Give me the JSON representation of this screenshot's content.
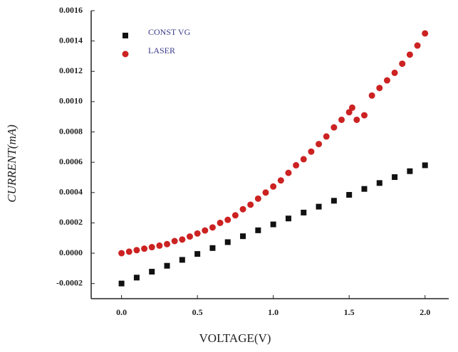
{
  "chart_data": {
    "type": "scatter",
    "x_label": "VOLTAGE(V)",
    "y_label": "CURRENT(mA)",
    "xlim": [
      -0.2,
      2.1
    ],
    "ylim": [
      -0.0003,
      0.0016
    ],
    "xticks": [
      {
        "value": 0,
        "label": "0.0"
      },
      {
        "value": 0.5,
        "label": "0.5"
      },
      {
        "value": 1,
        "label": "1.0"
      },
      {
        "value": 1.5,
        "label": "1.5"
      },
      {
        "value": 2,
        "label": "2.0"
      }
    ],
    "yticks": [
      {
        "value": -0.0002,
        "label": "-0.0002"
      },
      {
        "value": 0,
        "label": "0.0000"
      },
      {
        "value": 0.0002,
        "label": "0.0002"
      },
      {
        "value": 0.0004,
        "label": "0.0004"
      },
      {
        "value": 0.0006,
        "label": "0.0006"
      },
      {
        "value": 0.0008,
        "label": "0.0008"
      },
      {
        "value": 0.001,
        "label": "0.0010"
      },
      {
        "value": 0.0012,
        "label": "0.0012"
      },
      {
        "value": 0.0014,
        "label": "0.0014"
      },
      {
        "value": 0.0016,
        "label": "0.0016"
      }
    ],
    "grid": false,
    "legend": "top-left",
    "series": [
      {
        "name": "CONST VG",
        "color": "#111111",
        "marker": "square",
        "x": [
          0,
          0.1,
          0.2,
          0.3,
          0.4,
          0.5,
          0.6,
          0.7,
          0.8,
          0.9,
          1.0,
          1.1,
          1.2,
          1.3,
          1.4,
          1.5,
          1.6,
          1.7,
          1.8,
          1.9,
          2.0
        ],
        "values": [
          -0.0002,
          -0.000161,
          -0.000122,
          -8.3e-05,
          -4.4e-05,
          -5e-06,
          3.4e-05,
          7.3e-05,
          0.000112,
          0.000151,
          0.00019,
          0.000229,
          0.000268,
          0.000307,
          0.000346,
          0.000385,
          0.000424,
          0.000463,
          0.000502,
          0.000541,
          0.00058
        ]
      },
      {
        "name": "LASER",
        "color": "#cc2222",
        "marker": "circle",
        "x": [
          0,
          0.05,
          0.1,
          0.15,
          0.2,
          0.25,
          0.3,
          0.35,
          0.4,
          0.45,
          0.5,
          0.55,
          0.6,
          0.65,
          0.7,
          0.75,
          0.8,
          0.85,
          0.9,
          0.95,
          1.0,
          1.05,
          1.1,
          1.15,
          1.2,
          1.25,
          1.3,
          1.35,
          1.4,
          1.45,
          1.5,
          1.52,
          1.55,
          1.6,
          1.65,
          1.7,
          1.75,
          1.8,
          1.85,
          1.9,
          1.95,
          2.0
        ],
        "values": [
          0,
          1e-05,
          2e-05,
          3e-05,
          4e-05,
          5e-05,
          6e-05,
          8e-05,
          9e-05,
          0.00011,
          0.00013,
          0.00015,
          0.00017,
          0.0002,
          0.00022,
          0.00025,
          0.00029,
          0.00032,
          0.00036,
          0.0004,
          0.00044,
          0.00048,
          0.00053,
          0.00058,
          0.00062,
          0.00067,
          0.00072,
          0.00077,
          0.00083,
          0.00088,
          0.00093,
          0.00096,
          0.00088,
          0.00091,
          0.00104,
          0.00109,
          0.00114,
          0.00119,
          0.00125,
          0.00131,
          0.00137,
          0.00145
        ]
      }
    ]
  }
}
